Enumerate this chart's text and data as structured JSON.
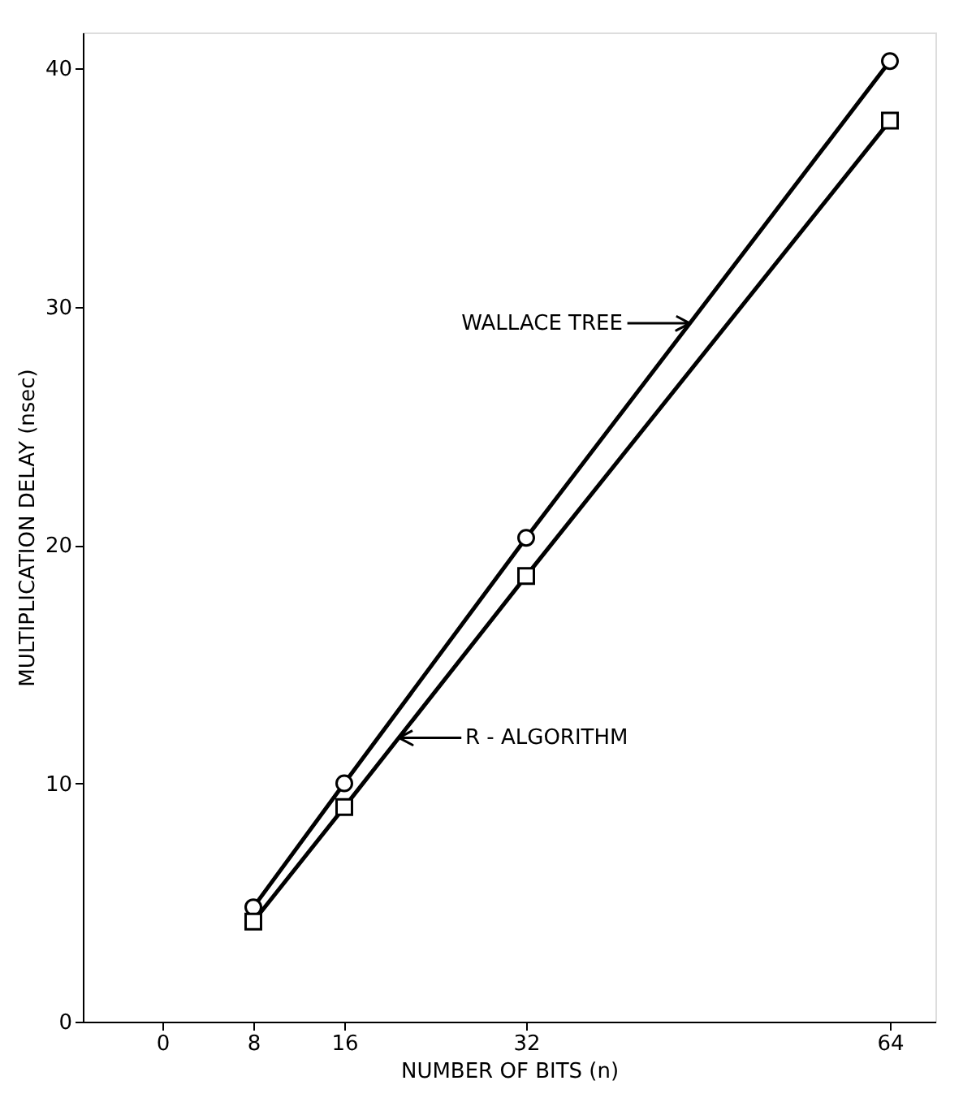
{
  "chart_data": {
    "type": "line",
    "xlabel": "NUMBER OF BITS (n)",
    "ylabel": "MULTIPLICATION DELAY (nsec)",
    "x": [
      8,
      16,
      32,
      64
    ],
    "series": [
      {
        "name": "WALLACE TREE",
        "color": "#000000",
        "marker": "circle",
        "values": [
          4.8,
          10.0,
          20.3,
          40.3
        ]
      },
      {
        "name": "R - ALGORITHM",
        "color": "#000000",
        "marker": "square",
        "values": [
          4.2,
          9.0,
          18.7,
          37.8
        ]
      }
    ],
    "xlim": [
      -7,
      68
    ],
    "ylim": [
      0,
      41.5
    ],
    "xticks": [
      0,
      8,
      16,
      32,
      64
    ],
    "yticks": [
      0,
      10,
      20,
      30,
      40
    ],
    "grid": false,
    "line_style": "solid"
  }
}
